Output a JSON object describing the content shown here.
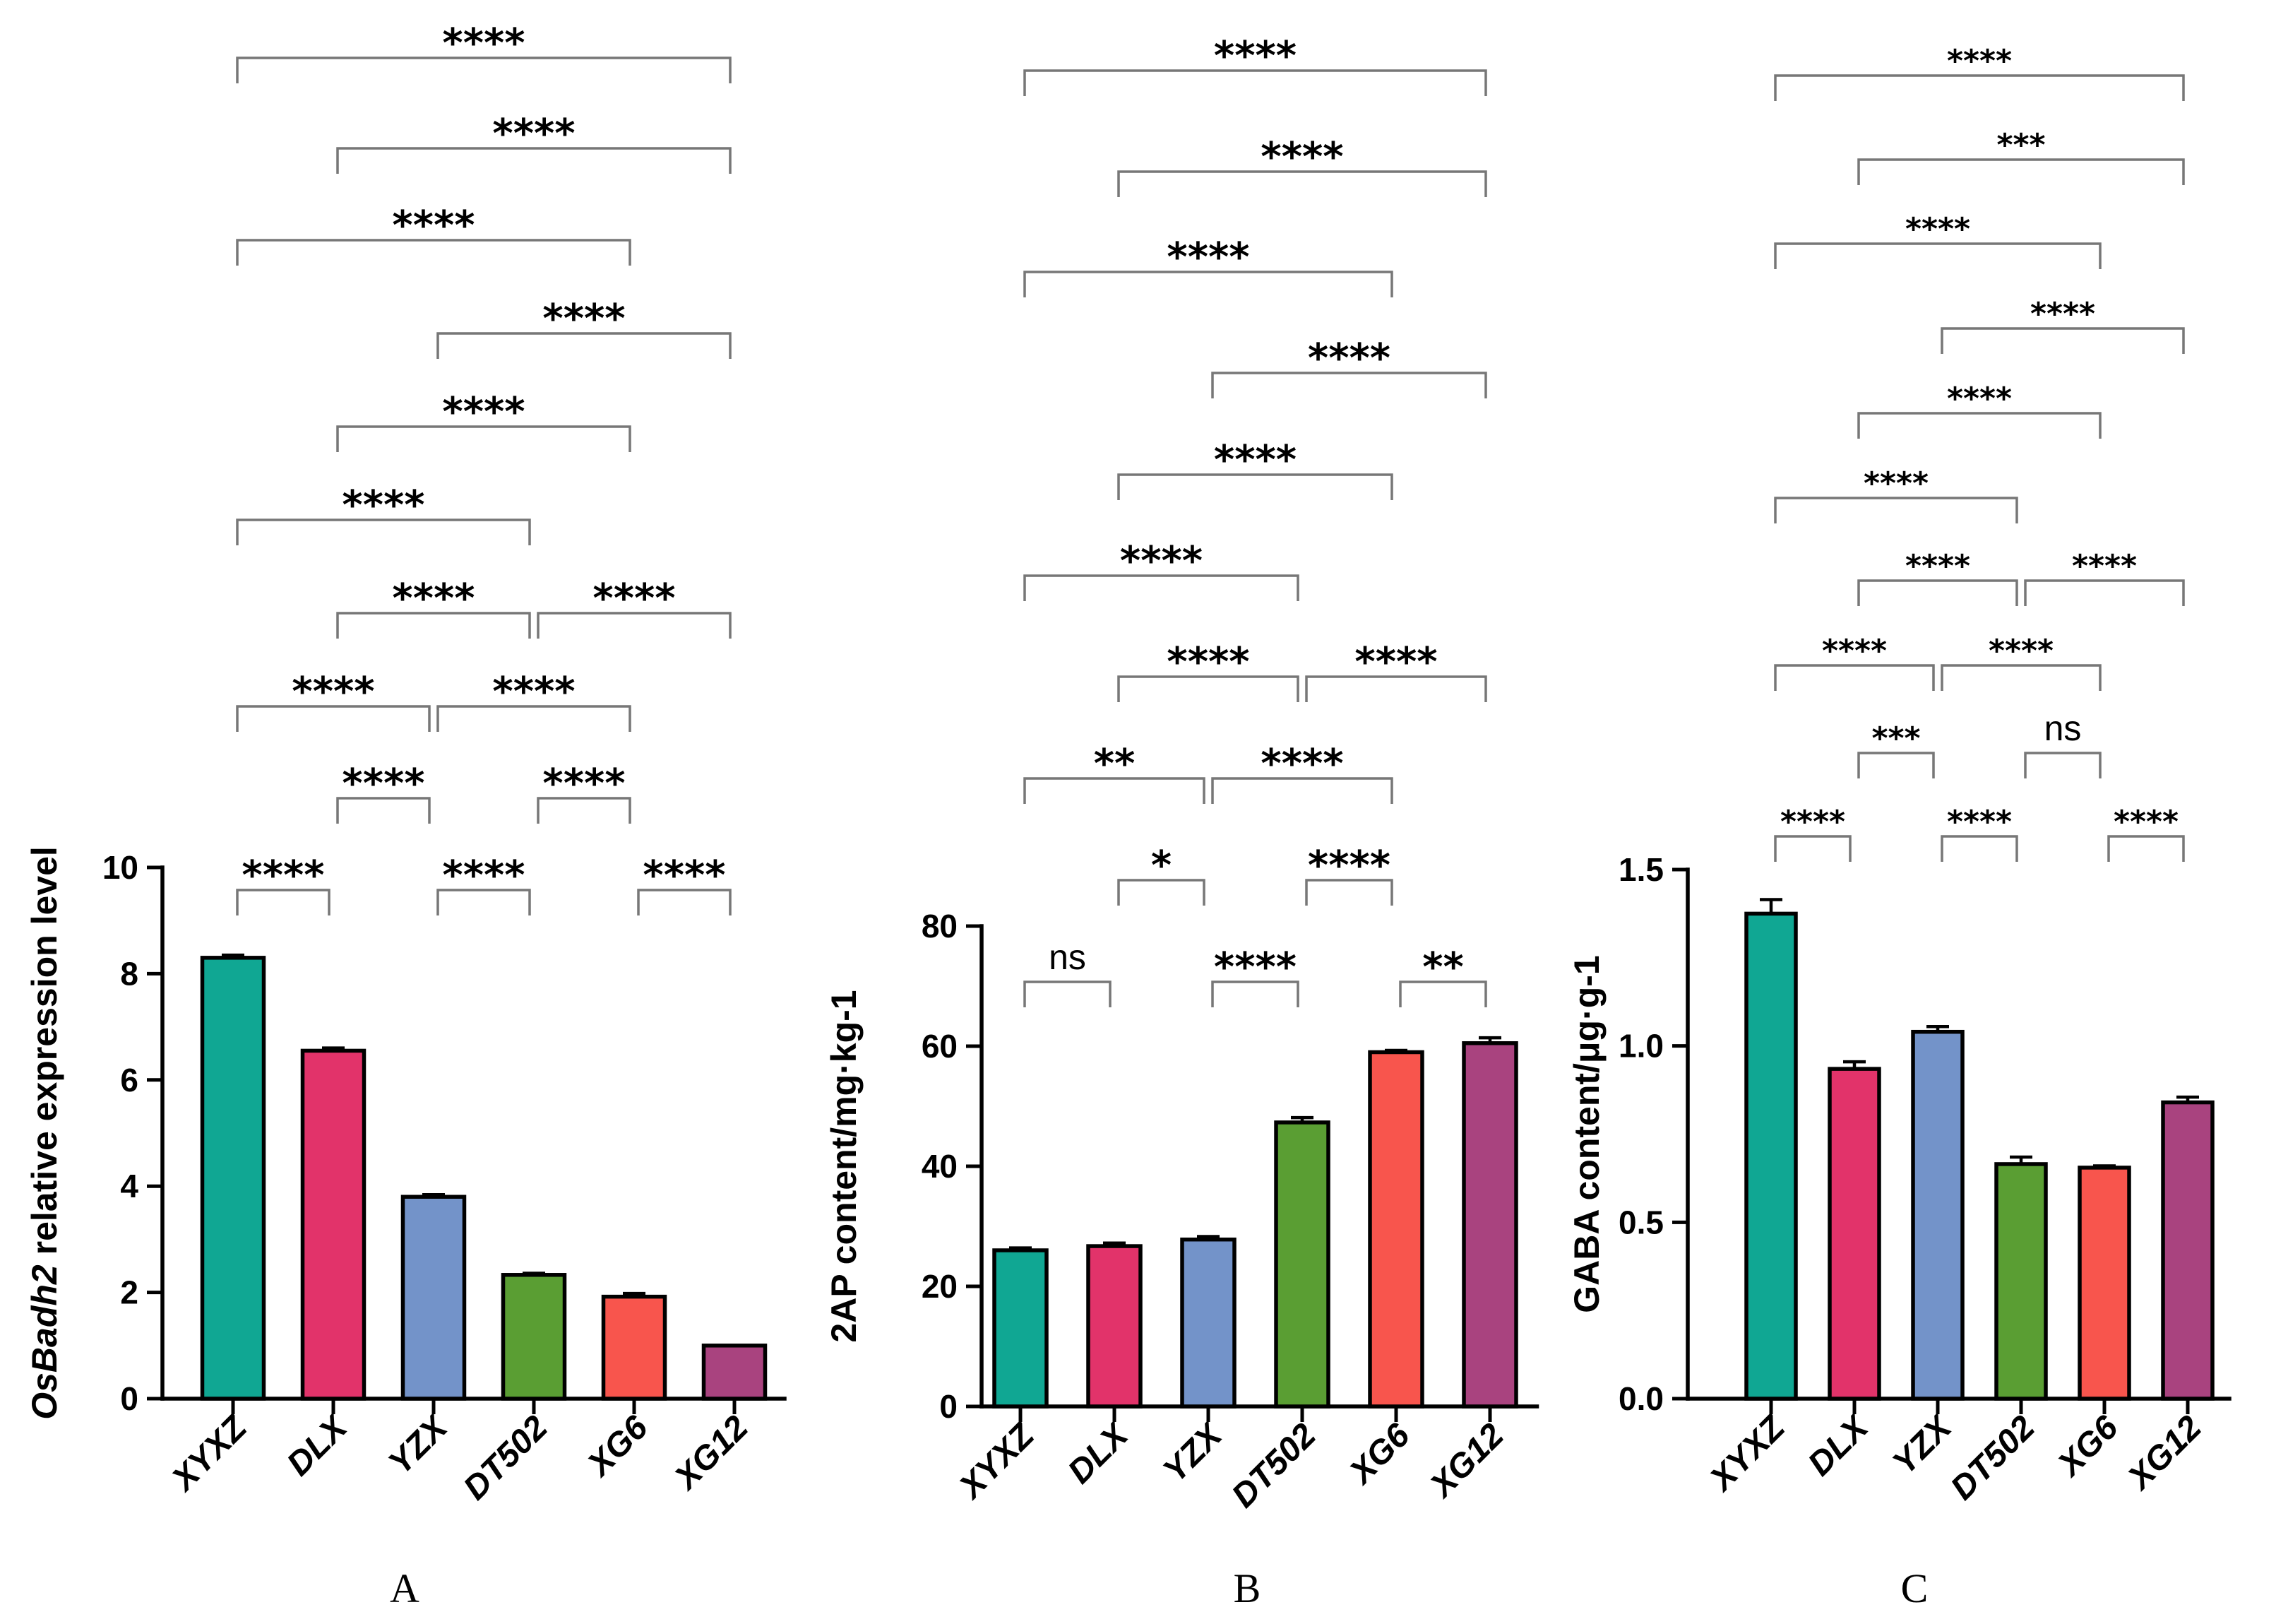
{
  "chart_data": [
    {
      "id": "A",
      "type": "bar",
      "panel_label": "A",
      "ylabel_italic": "OsBadh2",
      "ylabel_rest": " relative expression level",
      "categories": [
        "XYXZ",
        "DLX",
        "YZX",
        "DT502",
        "XG6",
        "XG12"
      ],
      "values": [
        8.3,
        6.55,
        3.8,
        2.33,
        1.92,
        1.0
      ],
      "errors": [
        0.05,
        0.05,
        0.04,
        0.03,
        0.06,
        0.0
      ],
      "colors": [
        "#10a793",
        "#e2336a",
        "#7393c9",
        "#5a9e33",
        "#f8554d",
        "#a9437f"
      ],
      "ylim": [
        0,
        10
      ],
      "yticks": [
        0,
        2,
        4,
        6,
        8,
        10
      ],
      "comparisons": [
        {
          "from": 0,
          "to": 1,
          "label": "****"
        },
        {
          "from": 2,
          "to": 3,
          "label": "****"
        },
        {
          "from": 4,
          "to": 5,
          "label": "****"
        },
        {
          "from": 1,
          "to": 2,
          "label": "****"
        },
        {
          "from": 3,
          "to": 4,
          "label": "****"
        },
        {
          "from": 0,
          "to": 2,
          "label": "****"
        },
        {
          "from": 2,
          "to": 4,
          "label": "****"
        },
        {
          "from": 1,
          "to": 3,
          "label": "****"
        },
        {
          "from": 3,
          "to": 5,
          "label": "****"
        },
        {
          "from": 0,
          "to": 3,
          "label": "****"
        },
        {
          "from": 1,
          "to": 4,
          "label": "****"
        },
        {
          "from": 2,
          "to": 5,
          "label": "****"
        },
        {
          "from": 0,
          "to": 4,
          "label": "****"
        },
        {
          "from": 1,
          "to": 5,
          "label": "****"
        },
        {
          "from": 0,
          "to": 5,
          "label": "****"
        }
      ]
    },
    {
      "id": "B",
      "type": "bar",
      "panel_label": "B",
      "ylabel": "2AP content/mg·kg-1",
      "categories": [
        "XYXZ",
        "DLX",
        "YZX",
        "DT502",
        "XG6",
        "XG12"
      ],
      "values": [
        26.0,
        26.7,
        27.8,
        47.3,
        59.0,
        60.5
      ],
      "errors": [
        0.4,
        0.5,
        0.5,
        0.8,
        0.3,
        0.9
      ],
      "colors": [
        "#10a793",
        "#e2336a",
        "#7393c9",
        "#5a9e33",
        "#f8554d",
        "#a9437f"
      ],
      "ylim": [
        0,
        80
      ],
      "yticks": [
        0,
        20,
        40,
        60,
        80
      ],
      "comparisons": [
        {
          "from": 0,
          "to": 1,
          "label": "ns"
        },
        {
          "from": 1,
          "to": 2,
          "label": "*"
        },
        {
          "from": 3,
          "to": 4,
          "label": "****"
        },
        {
          "from": 0,
          "to": 2,
          "label": "**"
        },
        {
          "from": 2,
          "to": 3,
          "label": "****"
        },
        {
          "from": 4,
          "to": 5,
          "label": "**"
        },
        {
          "from": 1,
          "to": 3,
          "label": "****"
        },
        {
          "from": 3,
          "to": 5,
          "label": "****"
        },
        {
          "from": 2,
          "to": 4,
          "label": "****"
        },
        {
          "from": 0,
          "to": 3,
          "label": "****"
        },
        {
          "from": 1,
          "to": 4,
          "label": "****"
        },
        {
          "from": 2,
          "to": 5,
          "label": "****"
        },
        {
          "from": 0,
          "to": 4,
          "label": "****"
        },
        {
          "from": 1,
          "to": 5,
          "label": "****"
        },
        {
          "from": 0,
          "to": 5,
          "label": "****"
        }
      ]
    },
    {
      "id": "C",
      "type": "bar",
      "panel_label": "C",
      "ylabel": "GABA content/μg·g-1",
      "categories": [
        "XYXZ",
        "DLX",
        "YZX",
        "DT502",
        "XG6",
        "XG12"
      ],
      "values": [
        1.375,
        0.935,
        1.04,
        0.665,
        0.655,
        0.84
      ],
      "errors": [
        0.04,
        0.02,
        0.015,
        0.02,
        0.005,
        0.015
      ],
      "colors": [
        "#10a793",
        "#e2336a",
        "#7393c9",
        "#5a9e33",
        "#f8554d",
        "#a9437f"
      ],
      "ylim": [
        0,
        1.5
      ],
      "yticks": [
        "0.0",
        "0.5",
        "1.0",
        "1.5"
      ],
      "comparisons": [
        {
          "from": 0,
          "to": 1,
          "label": "****"
        },
        {
          "from": 2,
          "to": 3,
          "label": "****"
        },
        {
          "from": 4,
          "to": 5,
          "label": "****"
        },
        {
          "from": 1,
          "to": 2,
          "label": "***"
        },
        {
          "from": 3,
          "to": 4,
          "label": "ns"
        },
        {
          "from": 0,
          "to": 2,
          "label": "****"
        },
        {
          "from": 2,
          "to": 4,
          "label": "****"
        },
        {
          "from": 1,
          "to": 3,
          "label": "****"
        },
        {
          "from": 3,
          "to": 5,
          "label": "****"
        },
        {
          "from": 0,
          "to": 3,
          "label": "****"
        },
        {
          "from": 1,
          "to": 4,
          "label": "****"
        },
        {
          "from": 2,
          "to": 5,
          "label": "****"
        },
        {
          "from": 0,
          "to": 4,
          "label": "****"
        },
        {
          "from": 1,
          "to": 5,
          "label": "***"
        },
        {
          "from": 0,
          "to": 5,
          "label": "****"
        }
      ]
    }
  ]
}
